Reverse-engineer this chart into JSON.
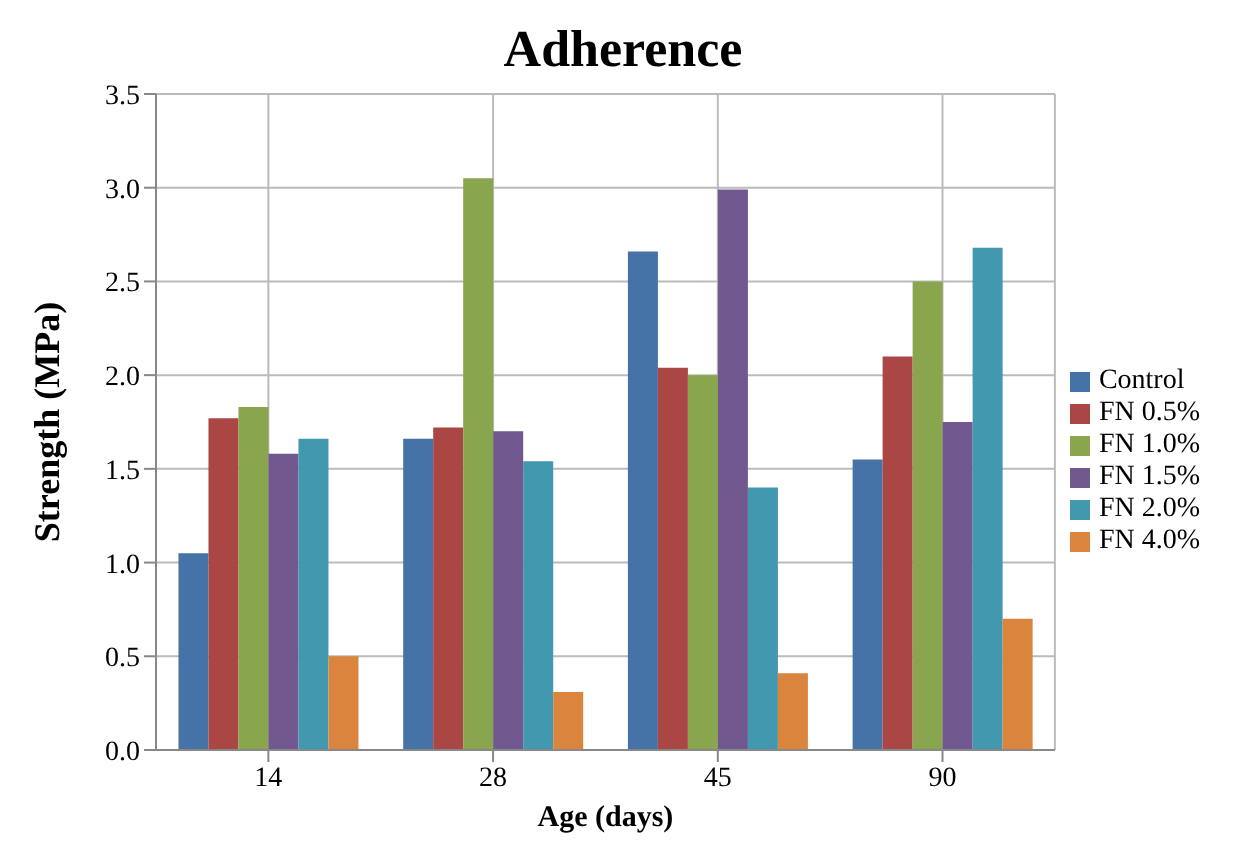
{
  "chart_data": {
    "type": "bar",
    "title": "Adherence",
    "xlabel": "Age (days)",
    "ylabel": "Strength (MPa)",
    "categories": [
      "14",
      "28",
      "45",
      "90"
    ],
    "series": [
      {
        "name": "Control",
        "color": "#4572a7",
        "values": [
          1.05,
          1.66,
          2.66,
          1.55
        ]
      },
      {
        "name": "FN 0.5%",
        "color": "#aa4643",
        "values": [
          1.77,
          1.72,
          2.04,
          2.1
        ]
      },
      {
        "name": "FN 1.0%",
        "color": "#89a54e",
        "values": [
          1.83,
          3.05,
          2.0,
          2.5
        ]
      },
      {
        "name": "FN 1.5%",
        "color": "#71588f",
        "values": [
          1.58,
          1.7,
          2.99,
          1.75
        ]
      },
      {
        "name": "FN 2.0%",
        "color": "#4198af",
        "values": [
          1.66,
          1.54,
          1.4,
          2.68
        ]
      },
      {
        "name": "FN 4.0%",
        "color": "#db843d",
        "values": [
          0.5,
          0.31,
          0.41,
          0.7
        ]
      }
    ],
    "ylim": [
      0,
      3.5
    ],
    "yticks": [
      {
        "value": 0,
        "label": "0.0"
      },
      0.5,
      {
        "value": 1,
        "label": "1.0"
      },
      1.5,
      {
        "value": 2,
        "label": "2.0"
      },
      2.5,
      {
        "value": 3,
        "label": "3.0"
      },
      3.5
    ],
    "grid": true,
    "legend": "right"
  }
}
